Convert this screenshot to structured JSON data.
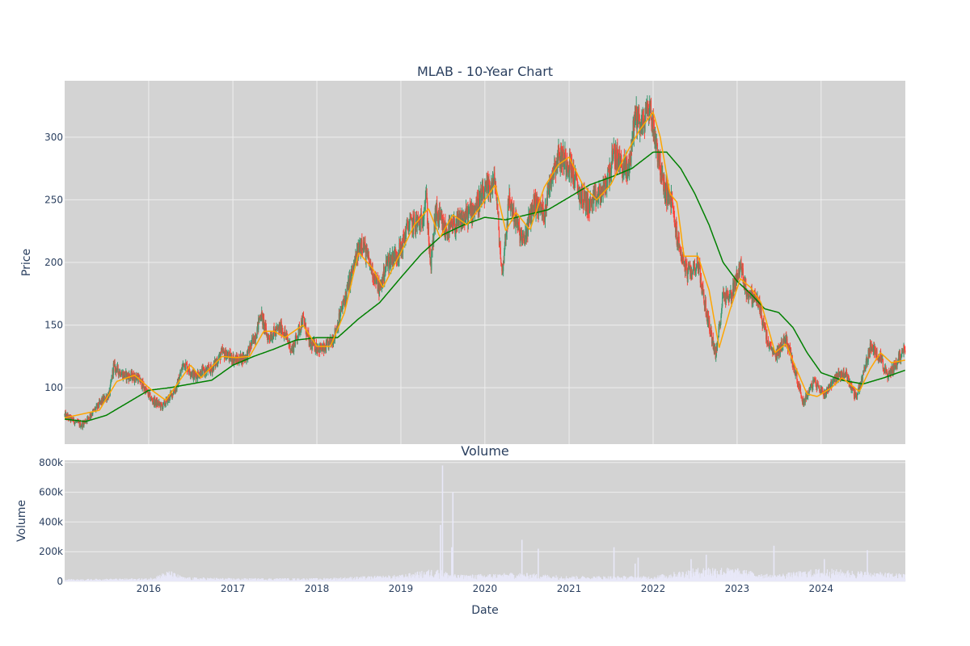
{
  "chart_data": [
    {
      "type": "candlestick",
      "title": "MLAB - 10-Year Chart",
      "ylabel": "Price",
      "ylim": [
        55,
        345
      ],
      "yticks": [
        100,
        150,
        200,
        250,
        300
      ],
      "xlim": [
        "2015-01-01",
        "2025-01-01"
      ],
      "xticks": [
        "2016",
        "2017",
        "2018",
        "2019",
        "2020",
        "2021",
        "2022",
        "2023",
        "2024"
      ],
      "grid": true,
      "colors": {
        "increasing": "#3d9970",
        "decreasing": "#ff4136",
        "ma_short": "#ffa500",
        "ma_long": "#008000",
        "plot_bg": "#d3d3d3",
        "grid": "#eeeeee"
      },
      "price_keypoints": [
        [
          "2015-01-01",
          78
        ],
        [
          "2015-03-15",
          70
        ],
        [
          "2015-05-01",
          80
        ],
        [
          "2015-06-15",
          90
        ],
        [
          "2015-07-15",
          95
        ],
        [
          "2015-08-01",
          117
        ],
        [
          "2015-09-15",
          110
        ],
        [
          "2015-11-15",
          108
        ],
        [
          "2016-01-15",
          90
        ],
        [
          "2016-03-01",
          85
        ],
        [
          "2016-05-01",
          100
        ],
        [
          "2016-06-01",
          120
        ],
        [
          "2016-07-15",
          110
        ],
        [
          "2016-10-01",
          115
        ],
        [
          "2016-11-15",
          128
        ],
        [
          "2017-01-15",
          122
        ],
        [
          "2017-03-01",
          125
        ],
        [
          "2017-04-15",
          145
        ],
        [
          "2017-05-01",
          160
        ],
        [
          "2017-06-01",
          140
        ],
        [
          "2017-08-01",
          148
        ],
        [
          "2017-09-15",
          130
        ],
        [
          "2017-11-01",
          155
        ],
        [
          "2017-12-01",
          135
        ],
        [
          "2018-02-01",
          130
        ],
        [
          "2018-03-15",
          140
        ],
        [
          "2018-05-01",
          170
        ],
        [
          "2018-06-15",
          200
        ],
        [
          "2018-07-15",
          218
        ],
        [
          "2018-08-15",
          200
        ],
        [
          "2018-10-01",
          178
        ],
        [
          "2018-11-01",
          200
        ],
        [
          "2019-01-01",
          210
        ],
        [
          "2019-02-01",
          230
        ],
        [
          "2019-04-01",
          232
        ],
        [
          "2019-04-20",
          255
        ],
        [
          "2019-05-10",
          195
        ],
        [
          "2019-06-01",
          240
        ],
        [
          "2019-07-15",
          225
        ],
        [
          "2019-09-01",
          230
        ],
        [
          "2019-11-01",
          240
        ],
        [
          "2020-01-01",
          255
        ],
        [
          "2020-02-15",
          265
        ],
        [
          "2020-03-15",
          190
        ],
        [
          "2020-04-15",
          250
        ],
        [
          "2020-06-15",
          215
        ],
        [
          "2020-08-01",
          248
        ],
        [
          "2020-09-15",
          240
        ],
        [
          "2020-10-15",
          270
        ],
        [
          "2020-11-15",
          285
        ],
        [
          "2021-01-01",
          280
        ],
        [
          "2021-02-15",
          255
        ],
        [
          "2021-04-01",
          245
        ],
        [
          "2021-06-01",
          258
        ],
        [
          "2021-07-15",
          285
        ],
        [
          "2021-09-15",
          272
        ],
        [
          "2021-10-15",
          318
        ],
        [
          "2021-11-15",
          310
        ],
        [
          "2021-12-15",
          325
        ],
        [
          "2022-01-15",
          295
        ],
        [
          "2022-02-15",
          260
        ],
        [
          "2022-03-20",
          250
        ],
        [
          "2022-04-20",
          215
        ],
        [
          "2022-06-01",
          190
        ],
        [
          "2022-07-15",
          200
        ],
        [
          "2022-08-15",
          165
        ],
        [
          "2022-10-01",
          125
        ],
        [
          "2022-11-01",
          175
        ],
        [
          "2022-12-01",
          172
        ],
        [
          "2023-01-15",
          197
        ],
        [
          "2023-02-15",
          175
        ],
        [
          "2023-04-01",
          170
        ],
        [
          "2023-05-15",
          135
        ],
        [
          "2023-06-15",
          125
        ],
        [
          "2023-08-01",
          140
        ],
        [
          "2023-09-15",
          110
        ],
        [
          "2023-10-15",
          88
        ],
        [
          "2023-12-01",
          105
        ],
        [
          "2024-01-15",
          95
        ],
        [
          "2024-03-01",
          108
        ],
        [
          "2024-04-15",
          112
        ],
        [
          "2024-06-01",
          92
        ],
        [
          "2024-07-01",
          110
        ],
        [
          "2024-08-01",
          132
        ],
        [
          "2024-09-15",
          125
        ],
        [
          "2024-10-15",
          108
        ],
        [
          "2024-12-31",
          132
        ]
      ],
      "ma_short_keypoints": [
        [
          "2015-01-01",
          76
        ],
        [
          "2015-06-01",
          82
        ],
        [
          "2015-08-15",
          105
        ],
        [
          "2015-11-01",
          110
        ],
        [
          "2016-01-15",
          98
        ],
        [
          "2016-03-15",
          90
        ],
        [
          "2016-07-01",
          118
        ],
        [
          "2016-08-15",
          108
        ],
        [
          "2016-11-15",
          125
        ],
        [
          "2017-01-15",
          124
        ],
        [
          "2017-03-15",
          125
        ],
        [
          "2017-05-15",
          145
        ],
        [
          "2017-07-01",
          145
        ],
        [
          "2017-08-15",
          140
        ],
        [
          "2017-11-01",
          150
        ],
        [
          "2018-01-01",
          133
        ],
        [
          "2018-03-01",
          133
        ],
        [
          "2018-05-01",
          160
        ],
        [
          "2018-07-01",
          208
        ],
        [
          "2018-09-01",
          195
        ],
        [
          "2018-10-15",
          180
        ],
        [
          "2019-01-01",
          208
        ],
        [
          "2019-03-01",
          230
        ],
        [
          "2019-05-01",
          243
        ],
        [
          "2019-06-20",
          220
        ],
        [
          "2019-08-15",
          238
        ],
        [
          "2019-10-15",
          230
        ],
        [
          "2019-12-15",
          245
        ],
        [
          "2020-02-15",
          262
        ],
        [
          "2020-04-01",
          225
        ],
        [
          "2020-05-15",
          240
        ],
        [
          "2020-07-15",
          226
        ],
        [
          "2020-09-15",
          260
        ],
        [
          "2020-11-15",
          278
        ],
        [
          "2021-01-01",
          284
        ],
        [
          "2021-03-01",
          262
        ],
        [
          "2021-05-01",
          250
        ],
        [
          "2021-07-01",
          262
        ],
        [
          "2021-09-01",
          285
        ],
        [
          "2021-11-01",
          305
        ],
        [
          "2022-01-01",
          320
        ],
        [
          "2022-02-01",
          300
        ],
        [
          "2022-03-15",
          255
        ],
        [
          "2022-04-15",
          248
        ],
        [
          "2022-05-15",
          205
        ],
        [
          "2022-07-15",
          205
        ],
        [
          "2022-09-01",
          178
        ],
        [
          "2022-10-15",
          132
        ],
        [
          "2022-12-01",
          162
        ],
        [
          "2023-01-15",
          187
        ],
        [
          "2023-03-01",
          180
        ],
        [
          "2023-04-15",
          168
        ],
        [
          "2023-06-15",
          128
        ],
        [
          "2023-08-01",
          135
        ],
        [
          "2023-09-15",
          115
        ],
        [
          "2023-11-01",
          95
        ],
        [
          "2023-12-15",
          93
        ],
        [
          "2024-02-15",
          100
        ],
        [
          "2024-04-01",
          108
        ],
        [
          "2024-06-15",
          97
        ],
        [
          "2024-08-01",
          115
        ],
        [
          "2024-09-15",
          128
        ],
        [
          "2024-11-01",
          120
        ],
        [
          "2024-12-31",
          122
        ]
      ],
      "ma_long_keypoints": [
        [
          "2015-01-01",
          75
        ],
        [
          "2015-04-01",
          73
        ],
        [
          "2015-07-01",
          78
        ],
        [
          "2015-10-01",
          88
        ],
        [
          "2016-01-01",
          98
        ],
        [
          "2016-04-01",
          100
        ],
        [
          "2016-07-01",
          103
        ],
        [
          "2016-10-01",
          106
        ],
        [
          "2017-01-01",
          118
        ],
        [
          "2017-04-01",
          125
        ],
        [
          "2017-07-01",
          131
        ],
        [
          "2017-10-01",
          138
        ],
        [
          "2018-01-01",
          140
        ],
        [
          "2018-04-01",
          140
        ],
        [
          "2018-07-01",
          155
        ],
        [
          "2018-10-01",
          168
        ],
        [
          "2019-01-01",
          188
        ],
        [
          "2019-04-01",
          207
        ],
        [
          "2019-07-01",
          222
        ],
        [
          "2019-10-01",
          230
        ],
        [
          "2020-01-01",
          236
        ],
        [
          "2020-04-01",
          234
        ],
        [
          "2020-07-01",
          238
        ],
        [
          "2020-10-01",
          242
        ],
        [
          "2021-01-01",
          252
        ],
        [
          "2021-04-01",
          262
        ],
        [
          "2021-07-01",
          268
        ],
        [
          "2021-10-01",
          275
        ],
        [
          "2022-01-01",
          288
        ],
        [
          "2022-03-01",
          288
        ],
        [
          "2022-05-01",
          275
        ],
        [
          "2022-07-01",
          255
        ],
        [
          "2022-09-01",
          230
        ],
        [
          "2022-11-01",
          200
        ],
        [
          "2023-01-01",
          185
        ],
        [
          "2023-03-01",
          175
        ],
        [
          "2023-05-01",
          163
        ],
        [
          "2023-07-01",
          160
        ],
        [
          "2023-09-01",
          148
        ],
        [
          "2023-11-01",
          128
        ],
        [
          "2024-01-01",
          112
        ],
        [
          "2024-04-01",
          106
        ],
        [
          "2024-07-01",
          103
        ],
        [
          "2024-10-01",
          108
        ],
        [
          "2024-12-31",
          114
        ]
      ]
    },
    {
      "type": "bar",
      "title": "Volume",
      "xlabel": "Date",
      "ylabel": "Volume",
      "ylim": [
        0,
        815000
      ],
      "yticks": [
        0,
        200000,
        400000,
        600000,
        800000
      ],
      "ytick_labels": [
        "0",
        "200k",
        "400k",
        "600k",
        "800k"
      ],
      "xlim": [
        "2015-01-01",
        "2025-01-01"
      ],
      "xticks": [
        "2016",
        "2017",
        "2018",
        "2019",
        "2020",
        "2021",
        "2022",
        "2023",
        "2024"
      ],
      "grid": true,
      "colors": {
        "bar": "#e8e8f8",
        "plot_bg": "#d3d3d3",
        "grid": "#eeeeee"
      },
      "baseline_keypoints": [
        [
          "2015-01-01",
          10000
        ],
        [
          "2016-01-01",
          15000
        ],
        [
          "2016-04-01",
          50000
        ],
        [
          "2016-06-01",
          20000
        ],
        [
          "2017-01-01",
          15000
        ],
        [
          "2018-01-01",
          15000
        ],
        [
          "2019-01-01",
          30000
        ],
        [
          "2019-06-01",
          60000
        ],
        [
          "2019-09-01",
          30000
        ],
        [
          "2020-06-01",
          40000
        ],
        [
          "2021-01-01",
          25000
        ],
        [
          "2022-01-01",
          25000
        ],
        [
          "2022-06-01",
          55000
        ],
        [
          "2022-09-01",
          70000
        ],
        [
          "2023-01-01",
          60000
        ],
        [
          "2023-06-01",
          30000
        ],
        [
          "2024-01-01",
          60000
        ],
        [
          "2024-12-31",
          35000
        ]
      ],
      "spikes": [
        [
          "2019-06-22",
          380000
        ],
        [
          "2019-07-01",
          780000
        ],
        [
          "2019-08-10",
          230000
        ],
        [
          "2019-08-15",
          600000
        ],
        [
          "2020-06-10",
          280000
        ],
        [
          "2020-08-20",
          220000
        ],
        [
          "2021-07-15",
          230000
        ],
        [
          "2021-10-15",
          120000
        ],
        [
          "2021-10-28",
          160000
        ],
        [
          "2022-06-15",
          150000
        ],
        [
          "2022-08-20",
          180000
        ],
        [
          "2023-06-10",
          240000
        ],
        [
          "2024-01-15",
          150000
        ],
        [
          "2024-07-20",
          210000
        ]
      ]
    }
  ]
}
